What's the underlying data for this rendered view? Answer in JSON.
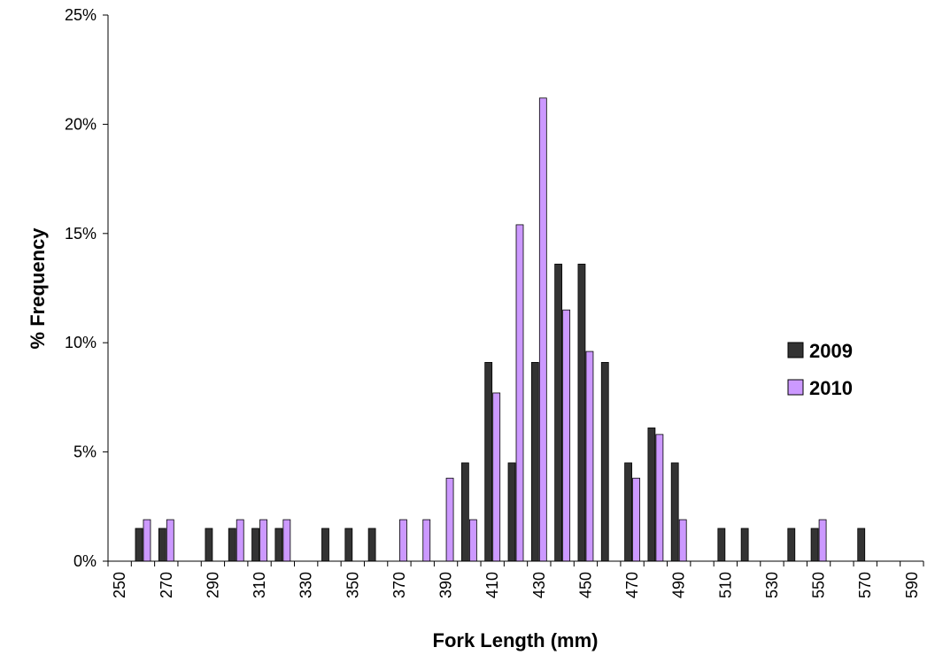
{
  "chart_data": {
    "type": "bar",
    "title": "",
    "xlabel": "Fork Length (mm)",
    "ylabel": "% Frequency",
    "ylim": [
      0,
      25
    ],
    "yticks": [
      "0%",
      "5%",
      "10%",
      "15%",
      "20%",
      "25%"
    ],
    "grid": false,
    "legend_position": "right",
    "x_labels_shown": [
      "250",
      "270",
      "290",
      "310",
      "330",
      "350",
      "370",
      "390",
      "410",
      "430",
      "450",
      "470",
      "490",
      "510",
      "530",
      "550",
      "570",
      "590"
    ],
    "categories": [
      250,
      260,
      270,
      280,
      290,
      300,
      310,
      320,
      330,
      340,
      350,
      360,
      370,
      380,
      390,
      400,
      410,
      420,
      430,
      440,
      450,
      460,
      470,
      480,
      490,
      500,
      510,
      520,
      530,
      540,
      550,
      560,
      570,
      580,
      590
    ],
    "series": [
      {
        "name": "2009",
        "color": "#333333",
        "values": [
          0,
          1.5,
          1.5,
          0,
          1.5,
          1.5,
          1.5,
          1.5,
          0,
          1.5,
          1.5,
          1.5,
          0,
          0,
          0,
          4.5,
          9.1,
          4.5,
          9.1,
          13.6,
          13.6,
          9.1,
          4.5,
          6.1,
          4.5,
          0,
          1.5,
          1.5,
          0,
          1.5,
          1.5,
          0,
          1.5,
          0,
          0
        ]
      },
      {
        "name": "2010",
        "color": "#cc99ff",
        "values": [
          0,
          1.9,
          1.9,
          0,
          0,
          1.9,
          1.9,
          1.9,
          0,
          0,
          0,
          0,
          1.9,
          1.9,
          3.8,
          1.9,
          7.7,
          15.4,
          21.2,
          11.5,
          9.6,
          0,
          3.8,
          5.8,
          1.9,
          0,
          0,
          0,
          0,
          0,
          1.9,
          0,
          0,
          0,
          0
        ]
      }
    ]
  }
}
